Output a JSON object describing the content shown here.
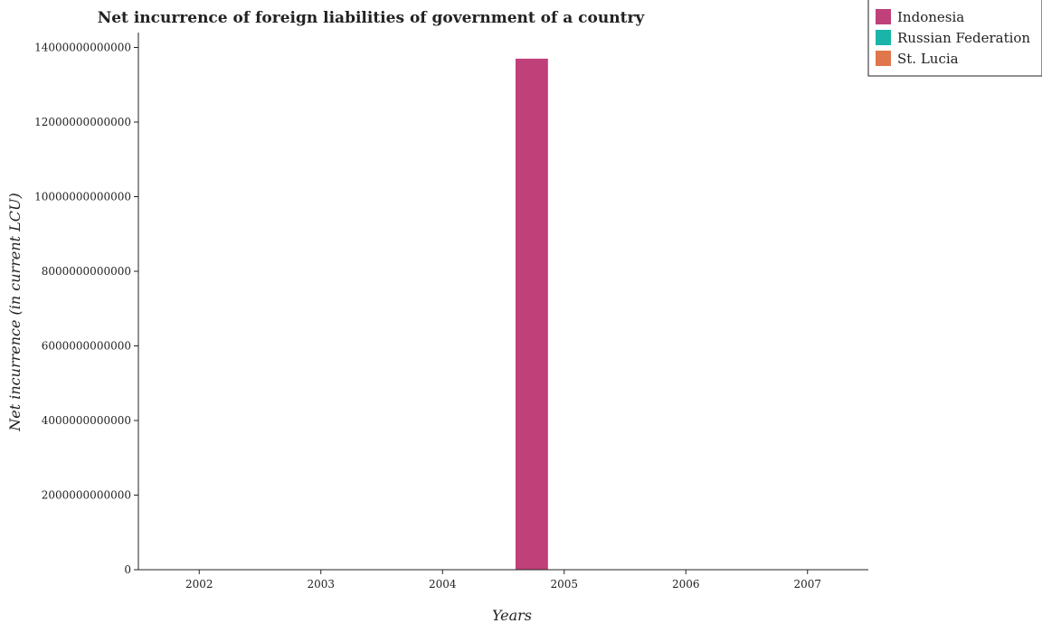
{
  "chart_data": {
    "type": "bar",
    "title": "Net incurrence of foreign liabilities of government of a country",
    "xlabel": "Years",
    "ylabel": "Net incurrence (in current LCU)",
    "categories": [
      "2002",
      "2003",
      "2004",
      "2005",
      "2006",
      "2007"
    ],
    "series": [
      {
        "name": "Indonesia",
        "color": "#c0407a",
        "values": [
          0,
          0,
          0,
          13700000000000,
          0,
          0
        ]
      },
      {
        "name": "Russian Federation",
        "color": "#1ab5a8",
        "values": [
          0,
          0,
          0,
          0,
          0,
          0
        ]
      },
      {
        "name": "St. Lucia",
        "color": "#e0774c",
        "values": [
          0,
          0,
          0,
          0,
          0,
          0
        ]
      }
    ],
    "ylim": [
      0,
      14400000000000
    ],
    "yticks": [
      0,
      2000000000000,
      4000000000000,
      6000000000000,
      8000000000000,
      10000000000000,
      12000000000000,
      14000000000000
    ],
    "ytick_labels": [
      "0",
      "2000000000000",
      "4000000000000",
      "6000000000000",
      "8000000000000",
      "10000000000000",
      "12000000000000",
      "14000000000000"
    ],
    "grid": false,
    "legend_position": "top-right"
  }
}
